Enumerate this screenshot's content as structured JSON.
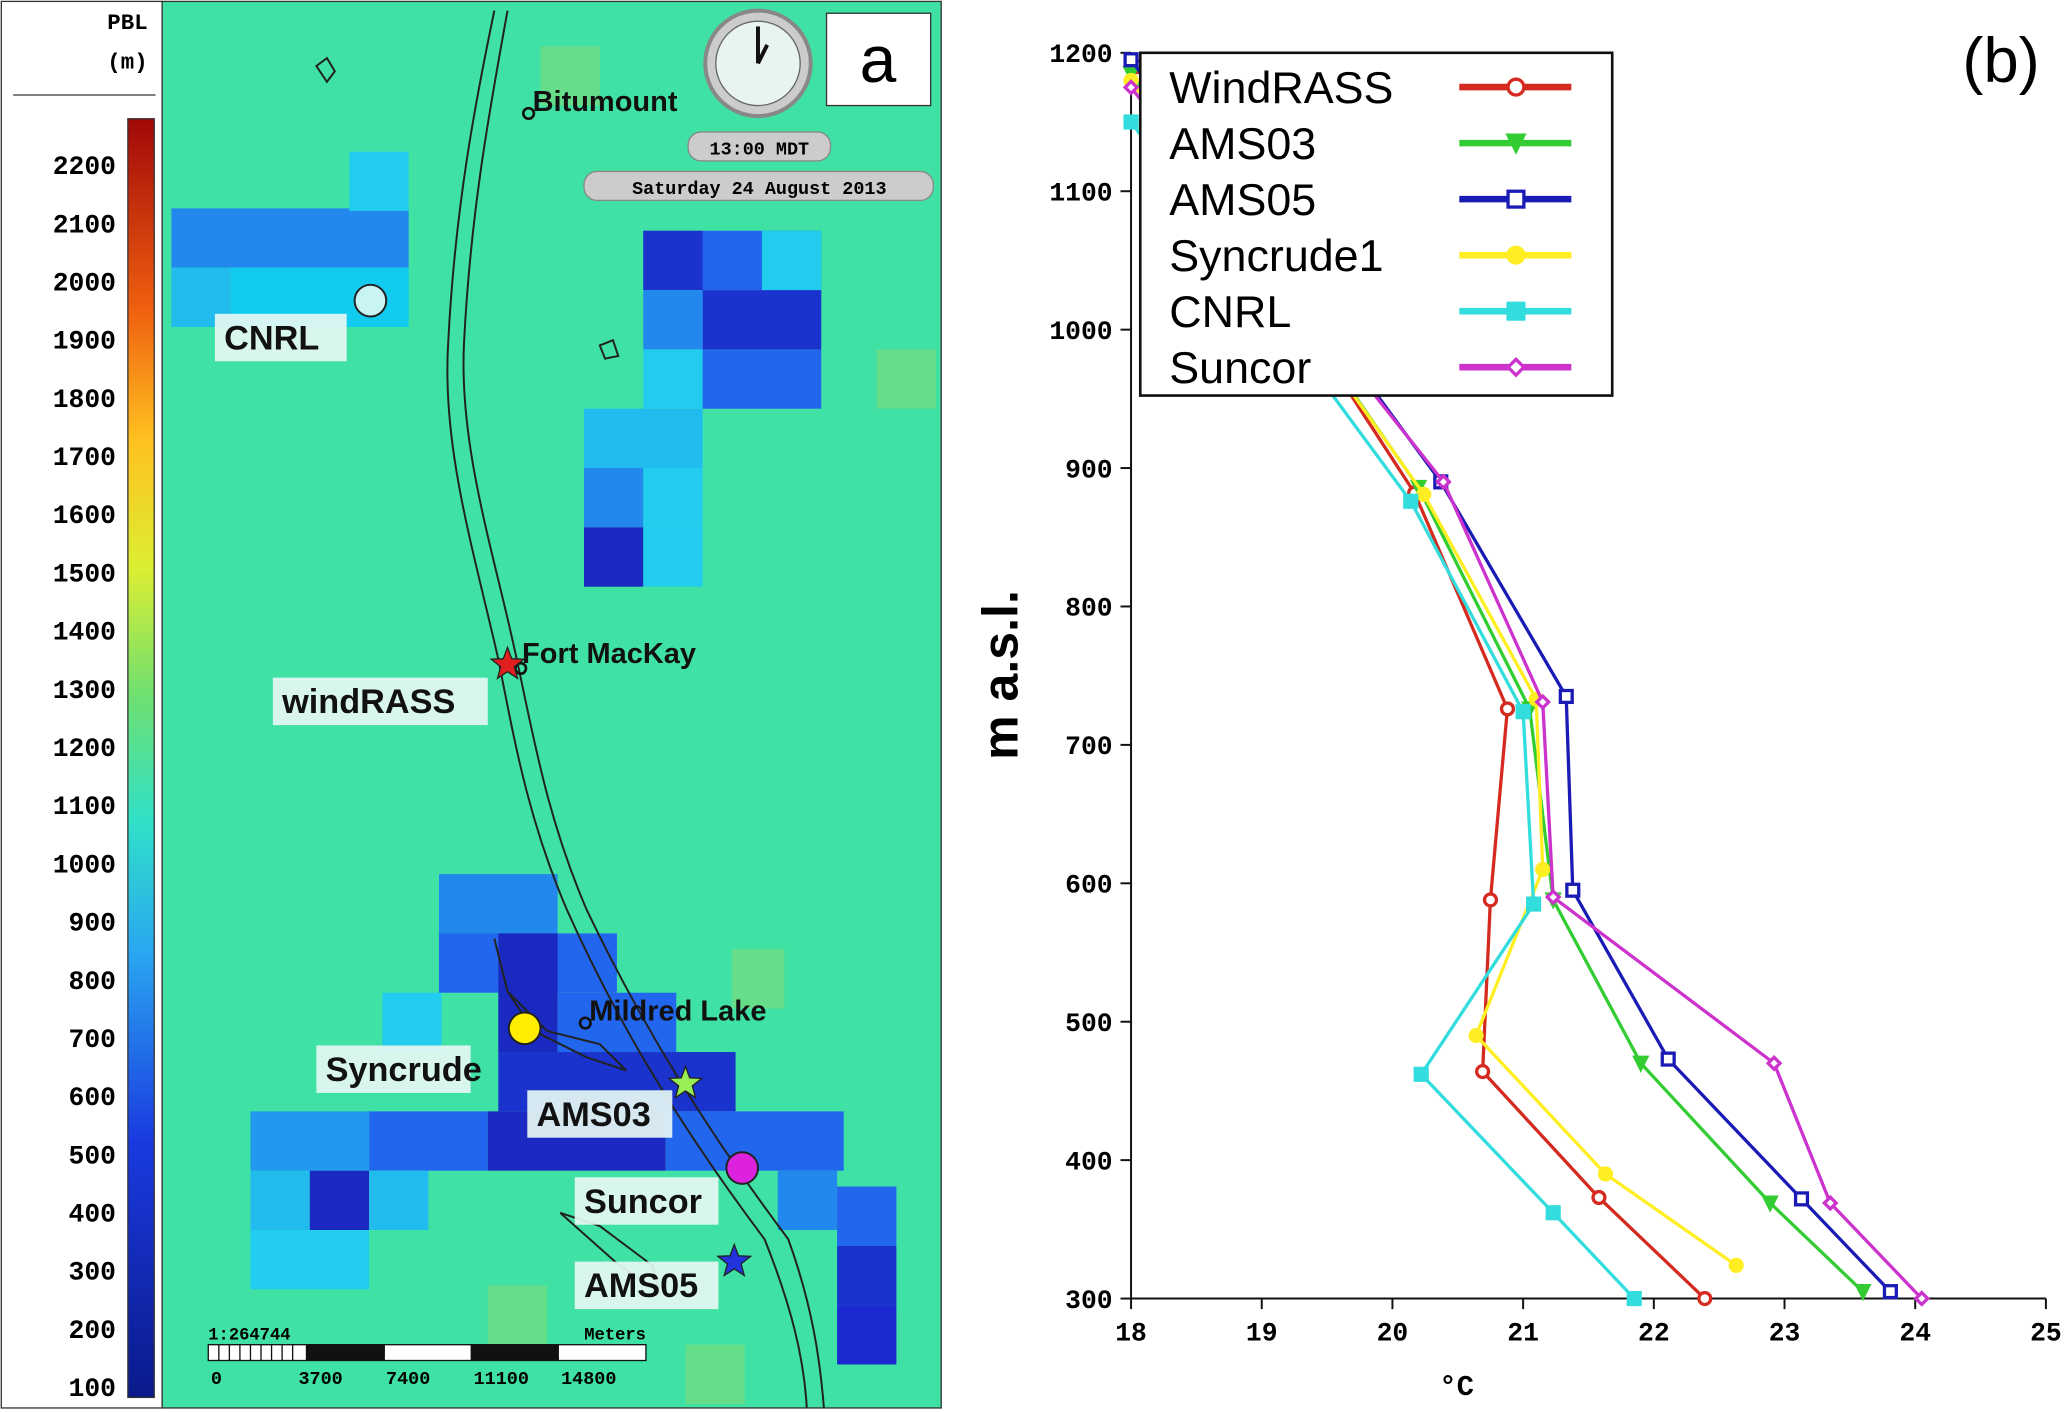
{
  "map": {
    "colorbar": {
      "title": "PBL",
      "unit": "(m)",
      "ticks": [
        100,
        200,
        300,
        400,
        500,
        600,
        700,
        800,
        900,
        1000,
        1100,
        1200,
        1300,
        1400,
        1500,
        1600,
        1700,
        1800,
        1900,
        2000,
        2100,
        2200
      ]
    },
    "panel_label": "a",
    "time": "13:00 MDT",
    "date": "Saturday 24 August 2013",
    "places": [
      "Bitumount",
      "Fort MacKay",
      "Mildred Lake"
    ],
    "stations": [
      "CNRL",
      "windRASS",
      "Syncrude",
      "AMS03",
      "Suncor",
      "AMS05"
    ],
    "scale": {
      "ratio": "1:264744",
      "unit": "Meters",
      "ticks": [
        0,
        3700,
        7400,
        11100,
        14800
      ]
    }
  },
  "chart_data": {
    "type": "line",
    "panel_label": "(b)",
    "xlabel": "°C",
    "ylabel": "m a.s.l.",
    "xlim": [
      18,
      25
    ],
    "ylim": [
      300,
      1200
    ],
    "xticks": [
      18,
      19,
      20,
      21,
      22,
      23,
      24,
      25
    ],
    "yticks": [
      300,
      400,
      500,
      600,
      700,
      800,
      900,
      1000,
      1100,
      1200
    ],
    "series": [
      {
        "name": "WindRASS",
        "color": "#d42a1f",
        "marker": "circle-open",
        "x": [
          18.05,
          20.17,
          20.88,
          20.75,
          20.69,
          21.58,
          22.39
        ],
        "y": [
          1190,
          882,
          726,
          588,
          464,
          373,
          300
        ]
      },
      {
        "name": "AMS03",
        "color": "#33cc33",
        "marker": "triangle",
        "x": [
          18.0,
          20.2,
          21.05,
          21.23,
          21.9,
          22.89,
          23.6
        ],
        "y": [
          1185,
          886,
          726,
          588,
          470,
          369,
          305
        ]
      },
      {
        "name": "AMS05",
        "color": "#1a1ab4",
        "marker": "square-open",
        "x": [
          18.0,
          20.37,
          21.33,
          21.38,
          22.11,
          23.13,
          23.81
        ],
        "y": [
          1195,
          890,
          735,
          595,
          473,
          372,
          305
        ]
      },
      {
        "name": "Syncrude1",
        "color": "#ffee22",
        "marker": "circle",
        "x": [
          18.0,
          20.24,
          21.1,
          21.15,
          20.64,
          21.63,
          22.63
        ],
        "y": [
          1180,
          881,
          733,
          610,
          490,
          390,
          324
        ]
      },
      {
        "name": "CNRL",
        "color": "#33dddd",
        "marker": "square",
        "x": [
          18.0,
          20.14,
          21.0,
          21.08,
          20.22,
          21.23,
          21.85
        ],
        "y": [
          1150,
          876,
          724,
          585,
          462,
          362,
          300
        ]
      },
      {
        "name": "Suncor",
        "color": "#cc33cc",
        "marker": "diamond-open",
        "x": [
          18.0,
          20.39,
          21.15,
          21.23,
          22.92,
          23.35,
          24.05
        ],
        "y": [
          1175,
          890,
          731,
          590,
          470,
          369,
          300
        ]
      }
    ]
  }
}
